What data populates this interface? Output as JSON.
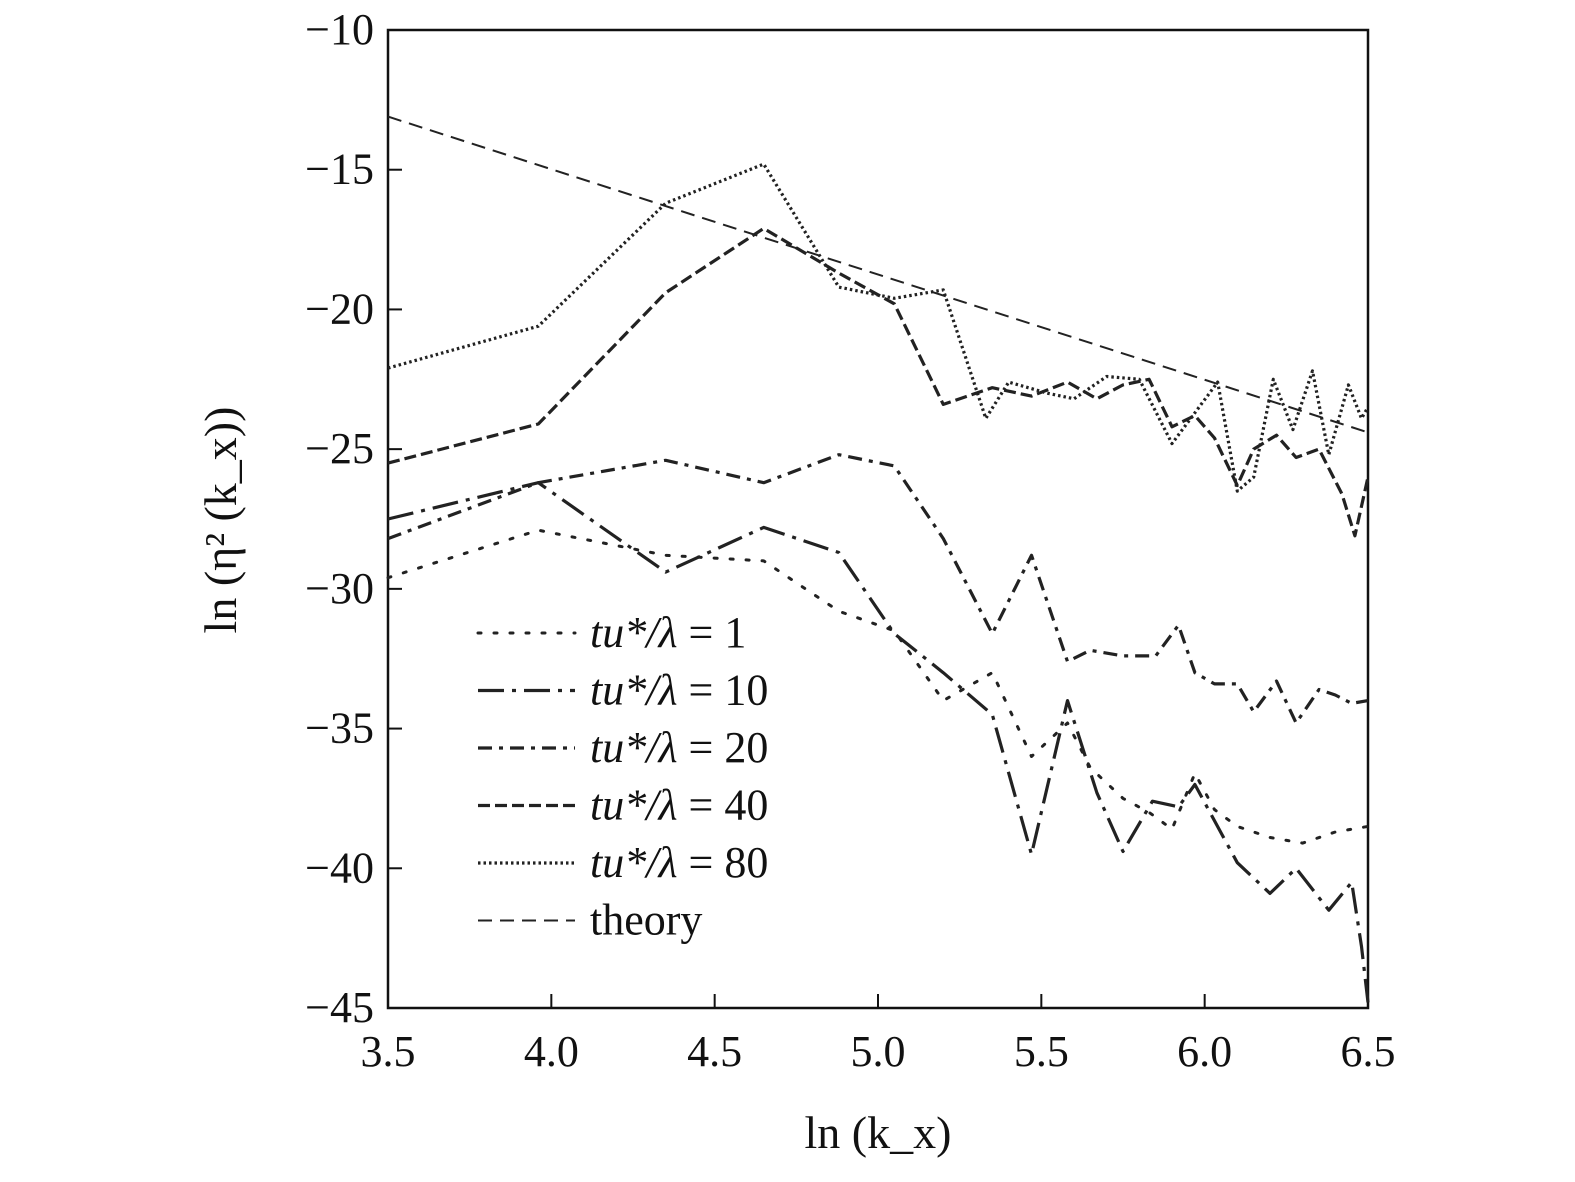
{
  "chart_data": {
    "type": "line",
    "title": "",
    "xlabel": "ln (k_x)",
    "ylabel": "ln (η² (k_x))",
    "xlim": [
      3.5,
      6.5
    ],
    "ylim": [
      -45,
      -10
    ],
    "xticks": [
      3.5,
      4.0,
      4.5,
      5.0,
      5.5,
      6.0,
      6.5
    ],
    "xtick_labels": [
      "3.5",
      "4.0",
      "4.5",
      "5.0",
      "5.5",
      "6.0",
      "6.5"
    ],
    "yticks": [
      -10,
      -15,
      -20,
      -25,
      -30,
      -35,
      -40,
      -45
    ],
    "ytick_labels": [
      "−10",
      "−15",
      "−20",
      "−25",
      "−30",
      "−35",
      "−40",
      "−45"
    ],
    "grid": false,
    "legend_position": "bottom-left",
    "series": [
      {
        "name": "tu*/λ = 1",
        "dash": "dot-spaced",
        "x": [
          3.5,
          3.96,
          4.35,
          4.65,
          4.88,
          5.05,
          5.2,
          5.35,
          5.47,
          5.58,
          5.65,
          5.75,
          5.83,
          5.9,
          5.97,
          6.03,
          6.1,
          6.2,
          6.3,
          6.4,
          6.5
        ],
        "y": [
          -29.6,
          -27.9,
          -28.8,
          -29.0,
          -30.8,
          -31.5,
          -34.0,
          -33.0,
          -36.0,
          -34.8,
          -36.4,
          -37.5,
          -38.0,
          -38.6,
          -36.6,
          -37.9,
          -38.5,
          -38.9,
          -39.1,
          -38.7,
          -38.5
        ]
      },
      {
        "name": "tu*/λ = 10",
        "dash": "long-dash-dot",
        "x": [
          3.5,
          3.96,
          4.35,
          4.65,
          4.88,
          5.05,
          5.2,
          5.35,
          5.47,
          5.58,
          5.67,
          5.75,
          5.84,
          5.92,
          5.97,
          6.03,
          6.1,
          6.2,
          6.28,
          6.38,
          6.45,
          6.48,
          6.5
        ],
        "y": [
          -27.5,
          -26.2,
          -29.4,
          -27.8,
          -28.7,
          -31.6,
          -33.0,
          -34.5,
          -39.5,
          -34.0,
          -37.3,
          -39.4,
          -37.6,
          -37.8,
          -37.0,
          -38.3,
          -39.8,
          -40.9,
          -40.0,
          -41.5,
          -40.5,
          -42.8,
          -44.8
        ]
      },
      {
        "name": "tu*/λ = 20",
        "dash": "dash-dot",
        "x": [
          3.5,
          3.96,
          4.35,
          4.65,
          4.88,
          5.05,
          5.2,
          5.35,
          5.47,
          5.58,
          5.65,
          5.75,
          5.85,
          5.92,
          5.97,
          6.03,
          6.1,
          6.15,
          6.22,
          6.28,
          6.35,
          6.4,
          6.45,
          6.5
        ],
        "y": [
          -28.2,
          -26.2,
          -25.4,
          -26.2,
          -25.2,
          -25.6,
          -28.2,
          -31.6,
          -28.8,
          -32.6,
          -32.2,
          -32.4,
          -32.4,
          -31.3,
          -33.0,
          -33.4,
          -33.4,
          -34.4,
          -33.3,
          -34.8,
          -33.6,
          -33.8,
          -34.1,
          -34.0
        ]
      },
      {
        "name": "tu*/λ = 40",
        "dash": "dashed",
        "x": [
          3.5,
          3.96,
          4.35,
          4.65,
          4.88,
          5.05,
          5.2,
          5.35,
          5.47,
          5.58,
          5.67,
          5.75,
          5.83,
          5.9,
          5.97,
          6.03,
          6.1,
          6.15,
          6.22,
          6.28,
          6.35,
          6.42,
          6.46,
          6.5
        ],
        "y": [
          -25.5,
          -24.1,
          -19.4,
          -17.1,
          -18.7,
          -19.8,
          -23.4,
          -22.8,
          -23.1,
          -22.6,
          -23.2,
          -22.7,
          -22.5,
          -24.2,
          -23.8,
          -24.6,
          -26.3,
          -25.0,
          -24.5,
          -25.3,
          -25.0,
          -26.6,
          -28.1,
          -26.0
        ]
      },
      {
        "name": "tu*/λ = 80",
        "dash": "dotted-dense",
        "x": [
          3.5,
          3.96,
          4.35,
          4.65,
          4.88,
          5.05,
          5.2,
          5.33,
          5.4,
          5.52,
          5.6,
          5.7,
          5.8,
          5.9,
          5.97,
          6.04,
          6.1,
          6.15,
          6.21,
          6.27,
          6.33,
          6.38,
          6.44,
          6.48,
          6.5
        ],
        "y": [
          -22.1,
          -20.6,
          -16.2,
          -14.8,
          -19.2,
          -19.6,
          -19.3,
          -23.9,
          -22.6,
          -23.0,
          -23.2,
          -22.4,
          -22.5,
          -24.8,
          -23.7,
          -22.6,
          -26.5,
          -26.0,
          -22.5,
          -24.3,
          -22.2,
          -25.2,
          -22.7,
          -23.9,
          -23.5
        ]
      },
      {
        "name": "theory",
        "dash": "thin-dashed",
        "x": [
          3.5,
          6.5
        ],
        "y": [
          -13.1,
          -24.4
        ]
      }
    ]
  }
}
